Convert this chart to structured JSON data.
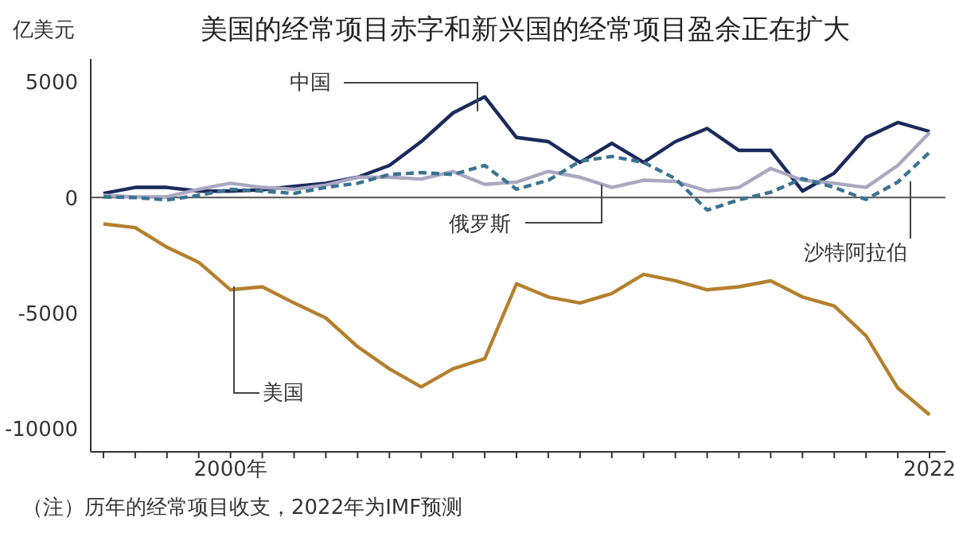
{
  "chart_data": {
    "type": "line",
    "title": "美国的经常项目赤字和新兴国的经常项目盈余正在扩大",
    "ylabel": "亿美元",
    "x": [
      1996,
      1997,
      1998,
      1999,
      2000,
      2001,
      2002,
      2003,
      2004,
      2005,
      2006,
      2007,
      2008,
      2009,
      2010,
      2011,
      2012,
      2013,
      2014,
      2015,
      2016,
      2017,
      2018,
      2019,
      2020,
      2021,
      2022
    ],
    "series": [
      {
        "name": "中国",
        "color": "#1b2a5c",
        "line_style": "solid",
        "values": [
          180,
          440,
          440,
          280,
          280,
          340,
          490,
          620,
          880,
          1390,
          2420,
          3660,
          4360,
          2600,
          2420,
          1520,
          2350,
          1520,
          2420,
          2990,
          2040,
          2040,
          280,
          1060,
          2600,
          3250,
          2860
        ]
      },
      {
        "name": "俄罗斯",
        "color": "#aaa7c2",
        "line_style": "solid",
        "values": [
          100,
          30,
          30,
          360,
          620,
          440,
          360,
          540,
          880,
          880,
          800,
          1130,
          570,
          670,
          1130,
          880,
          440,
          750,
          700,
          280,
          440,
          1260,
          750,
          620,
          440,
          1390,
          2810
        ]
      },
      {
        "name": "沙特阿拉伯",
        "color": "#3b7392",
        "line_style": "dashed",
        "values": [
          30,
          0,
          -100,
          100,
          360,
          280,
          180,
          440,
          620,
          1000,
          1080,
          1000,
          1390,
          360,
          750,
          1570,
          1780,
          1520,
          820,
          -540,
          -100,
          230,
          820,
          440,
          -80,
          670,
          1960
        ]
      },
      {
        "name": "美国",
        "color": "#b5802e",
        "line_style": "solid",
        "values": [
          -1140,
          -1300,
          -2150,
          -2800,
          -3990,
          -3860,
          -4560,
          -5210,
          -6450,
          -7410,
          -8190,
          -7410,
          -6970,
          -3730,
          -4300,
          -4560,
          -4150,
          -3320,
          -3600,
          -3990,
          -3860,
          -3600,
          -4300,
          -4690,
          -5980,
          -8240,
          -9400
        ]
      }
    ],
    "xlim": [
      1995.6,
      2022.5
    ],
    "xticks": [
      {
        "value": 1996,
        "label": null
      },
      {
        "value": 1997,
        "label": null
      },
      {
        "value": 1998,
        "label": null
      },
      {
        "value": 1999,
        "label": null
      },
      {
        "value": 2000,
        "label": "2000年"
      },
      {
        "value": 2001,
        "label": null
      },
      {
        "value": 2002,
        "label": null
      },
      {
        "value": 2003,
        "label": null
      },
      {
        "value": 2004,
        "label": null
      },
      {
        "value": 2005,
        "label": null
      },
      {
        "value": 2006,
        "label": null
      },
      {
        "value": 2007,
        "label": null
      },
      {
        "value": 2008,
        "label": null
      },
      {
        "value": 2009,
        "label": null
      },
      {
        "value": 2010,
        "label": null
      },
      {
        "value": 2011,
        "label": null
      },
      {
        "value": 2012,
        "label": null
      },
      {
        "value": 2013,
        "label": null
      },
      {
        "value": 2014,
        "label": null
      },
      {
        "value": 2015,
        "label": null
      },
      {
        "value": 2016,
        "label": null
      },
      {
        "value": 2017,
        "label": null
      },
      {
        "value": 2018,
        "label": null
      },
      {
        "value": 2019,
        "label": null
      },
      {
        "value": 2020,
        "label": null
      },
      {
        "value": 2021,
        "label": null
      },
      {
        "value": 2022,
        "label": "2022"
      }
    ],
    "ylim": [
      -11000,
      6000
    ],
    "yticks": [
      -10000,
      -5000,
      0,
      5000
    ],
    "ref_lines": [
      {
        "axis": "y",
        "value": 0,
        "color": "#555555"
      }
    ],
    "grid": false,
    "legend": false,
    "marker": "none",
    "annotations": [
      "（注）历年的经常项目收支，2022年为IMF预测"
    ]
  }
}
